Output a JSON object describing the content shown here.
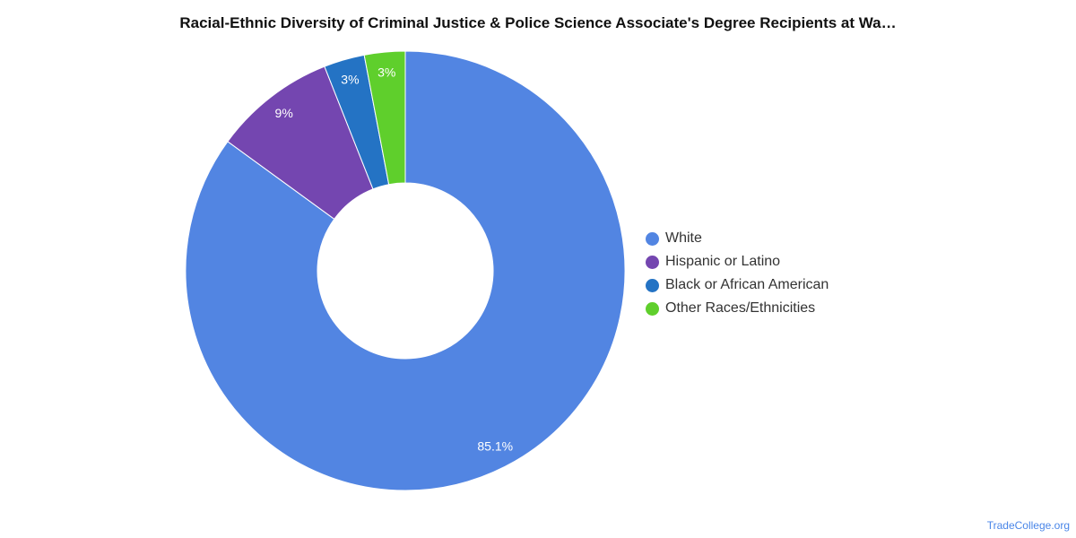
{
  "title": "Racial-Ethnic Diversity of Criminal Justice & Police Science Associate's Degree Recipients at Wa…",
  "watermark": "TradeCollege.org",
  "chart_data": {
    "type": "pie",
    "donut": true,
    "legend_position": "right",
    "categories": [
      "White",
      "Hispanic or Latino",
      "Black or African American",
      "Other Races/Ethnicities"
    ],
    "values": [
      85.1,
      9,
      3,
      3
    ],
    "labels": [
      "85.1%",
      "9%",
      "3%",
      "3%"
    ],
    "colors": [
      "#5285e2",
      "#7446b0",
      "#2473c4",
      "#5fcf2c"
    ]
  }
}
